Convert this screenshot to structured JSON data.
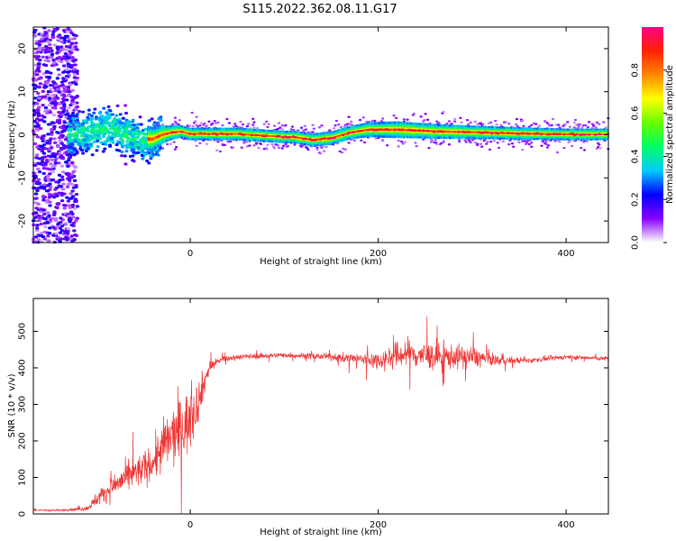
{
  "title": "S115.2022.362.08.11.G17",
  "chart_data": [
    {
      "type": "heatmap",
      "xlabel": "Height of straight line (km)",
      "ylabel": "Frequency (Hz)",
      "xlim": [
        -167,
        445
      ],
      "ylim": [
        -25,
        25
      ],
      "x_ticks": [
        0,
        200,
        400
      ],
      "y_ticks": [
        -20,
        -10,
        0,
        10,
        20
      ],
      "colorbar": {
        "label": "Normalized spectral amplitude",
        "range": [
          0,
          1
        ],
        "ticks": [
          "0.0",
          "0.2",
          "0.4",
          "0.6",
          "0.8"
        ],
        "tick_values": [
          0,
          0.2,
          0.4,
          0.6,
          0.8
        ],
        "colors": [
          "#ffffff",
          "#8800ff",
          "#0000ff",
          "#00ccff",
          "#00ff66",
          "#66ff00",
          "#ffff00",
          "#ff8800",
          "#ff2200",
          "#ff0088"
        ]
      },
      "ridge": {
        "x": [
          -130,
          -100,
          -80,
          -60,
          -40,
          -30,
          -20,
          -10,
          0,
          50,
          100,
          110,
          130,
          150,
          170,
          190,
          220,
          260,
          300,
          350,
          400,
          445
        ],
        "freq": [
          0,
          1,
          1.5,
          -1,
          -1,
          0,
          0.5,
          0.8,
          0.2,
          0.2,
          -0.5,
          -0.5,
          -1.2,
          -0.8,
          0.5,
          1.2,
          1.2,
          0.8,
          0.6,
          0.3,
          0.1,
          0.1
        ],
        "halfwidth": [
          3,
          4,
          4,
          3.5,
          3,
          2.2,
          1.8,
          1.5,
          1.5,
          1.5,
          1.5,
          1.5,
          1.6,
          1.6,
          1.6,
          1.8,
          2.0,
          1.8,
          1.6,
          1.5,
          1.4,
          1.4
        ]
      },
      "noise_region_x": [
        -167,
        -120
      ]
    },
    {
      "type": "line",
      "xlabel": "Height of straight line (km)",
      "ylabel": "SNR (10 * v/v)",
      "xlim": [
        -167,
        445
      ],
      "ylim": [
        0,
        590
      ],
      "x_ticks": [
        0,
        200,
        400
      ],
      "y_ticks": [
        0,
        100,
        200,
        300,
        400,
        500
      ],
      "series": [
        {
          "color": "#ee3333",
          "envelope_x": [
            -167,
            -140,
            -110,
            -100,
            -80,
            -60,
            -40,
            -30,
            -20,
            -10,
            0,
            10,
            20,
            30,
            50,
            100,
            150,
            200,
            230,
            260,
            300,
            330,
            360,
            400,
            445
          ],
          "mean": [
            10,
            10,
            15,
            40,
            80,
            110,
            140,
            180,
            210,
            230,
            260,
            320,
            400,
            420,
            430,
            435,
            430,
            420,
            440,
            430,
            430,
            420,
            420,
            430,
            425
          ],
          "spread": [
            4,
            4,
            10,
            30,
            60,
            70,
            80,
            120,
            140,
            150,
            140,
            90,
            30,
            15,
            12,
            12,
            15,
            40,
            70,
            60,
            50,
            20,
            12,
            10,
            10
          ]
        }
      ]
    }
  ]
}
